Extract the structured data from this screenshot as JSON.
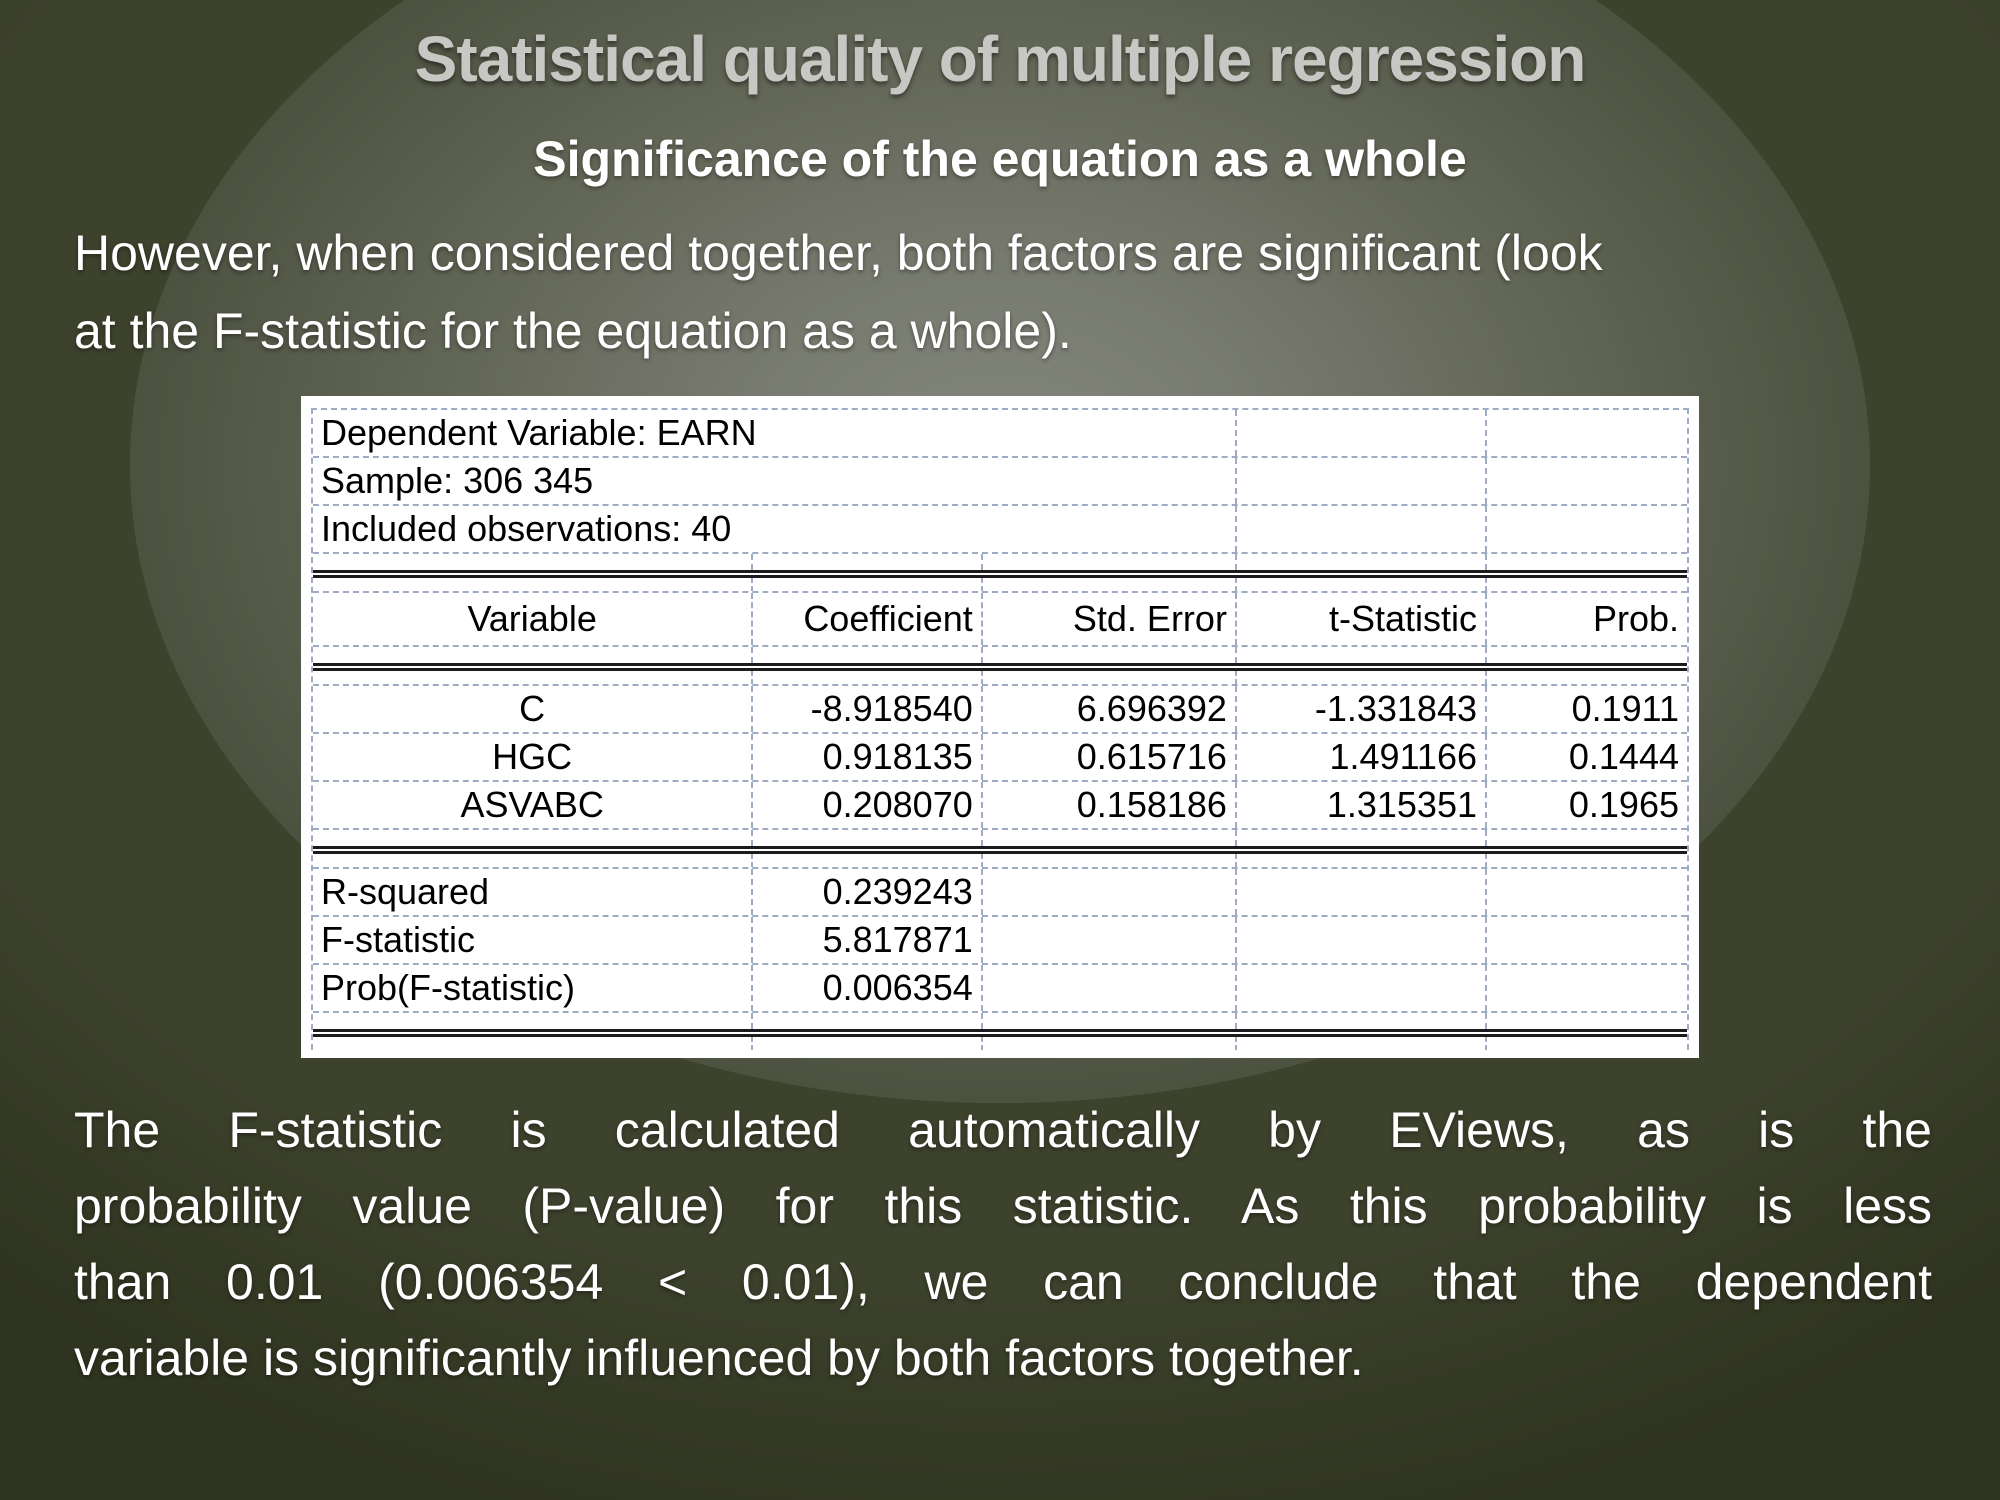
{
  "slide": {
    "title": "Statistical quality of multiple regression",
    "subtitle": "Significance of the equation as a whole",
    "intro_lines": [
      "However, when considered together, both factors are significant (look",
      "at the F-statistic for the equation as a whole)."
    ],
    "conclusion_lines": [
      "The F-statistic is calculated automatically by EViews, as is the",
      "probability value (P-value) for this statistic. As this probability is less",
      "than 0.01 (0.006354 < 0.01), we can conclude that the dependent",
      "variable is significantly influenced by both factors together."
    ]
  },
  "regression_output": {
    "info_lines": [
      "Dependent Variable: EARN",
      "Sample: 306 345",
      "Included observations: 40"
    ],
    "columns": [
      "Variable",
      "Coefficient",
      "Std. Error",
      "t-Statistic",
      "Prob."
    ],
    "rows": [
      {
        "variable": "C",
        "coefficient": "-8.918540",
        "std_error": "6.696392",
        "t_statistic": "-1.331843",
        "prob": "0.1911"
      },
      {
        "variable": "HGC",
        "coefficient": "0.918135",
        "std_error": "0.615716",
        "t_statistic": "1.491166",
        "prob": "0.1444"
      },
      {
        "variable": "ASVABC",
        "coefficient": "0.208070",
        "std_error": "0.158186",
        "t_statistic": "1.315351",
        "prob": "0.1965"
      }
    ],
    "stats": [
      {
        "label": "R-squared",
        "value": "0.239243"
      },
      {
        "label": "F-statistic",
        "value": "5.817871"
      },
      {
        "label": "Prob(F-statistic)",
        "value": "0.006354"
      }
    ]
  },
  "colors": {
    "background_center": "#85887d",
    "background_edge": "#2f3420",
    "title_text": "#c7c8c4",
    "body_text": "#ffffff",
    "table_background": "#ffffff",
    "table_text": "#000000",
    "table_gridline": "#9fabc2",
    "table_rule": "#1b1b1b"
  }
}
